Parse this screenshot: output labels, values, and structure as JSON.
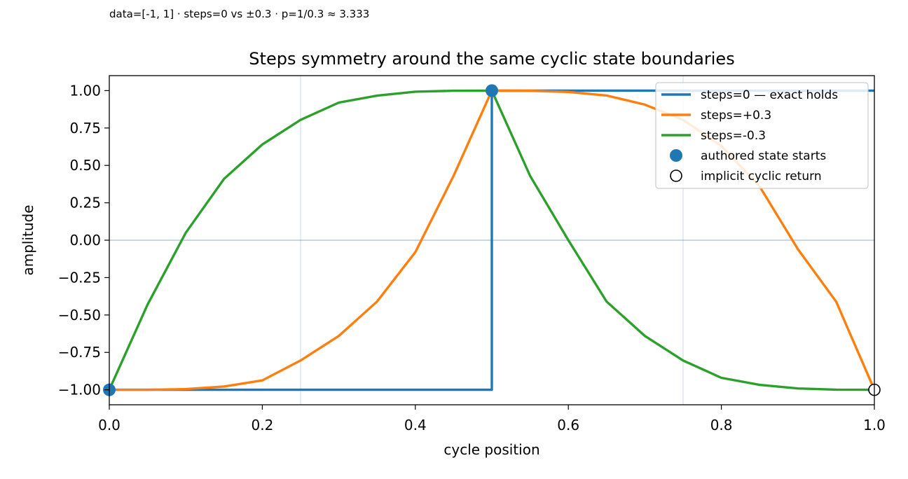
{
  "supertitle": "data=[-1, 1] · steps=0 vs ±0.3 · p=1/0.3 ≈ 3.333",
  "chart_data": {
    "type": "line",
    "title": "Steps symmetry around the same cyclic state boundaries",
    "xlabel": "cycle position",
    "ylabel": "amplitude",
    "xlim": [
      0,
      1
    ],
    "ylim": [
      -1.1,
      1.1
    ],
    "xticks": [
      0.0,
      0.2,
      0.4,
      0.6,
      0.8,
      1.0
    ],
    "xtick_labels": [
      "0.0",
      "0.2",
      "0.4",
      "0.6",
      "0.8",
      "1.0"
    ],
    "yticks": [
      1.0,
      0.75,
      0.5,
      0.25,
      0.0,
      -0.25,
      -0.5,
      -0.75,
      -1.0
    ],
    "ytick_labels": [
      "1.00",
      "0.75",
      "0.50",
      "0.25",
      "0.00",
      "−0.25",
      "−0.50",
      "−0.75",
      "−1.00"
    ],
    "reference_vlines": [
      0.25,
      0.75
    ],
    "reference_hlines": [
      0.0
    ],
    "legend_position": "top-right",
    "series": [
      {
        "name": "steps=0 — exact holds",
        "color": "#1f77b4",
        "x": [
          0.0,
          0.5,
          0.5,
          1.0
        ],
        "y": [
          -1.0,
          -1.0,
          1.0,
          1.0
        ]
      },
      {
        "name": "steps=+0.3",
        "color": "#ff7f0e",
        "x": [
          0.0,
          0.05,
          0.1,
          0.15,
          0.2,
          0.25,
          0.3,
          0.35,
          0.4,
          0.45,
          0.5,
          0.55,
          0.6,
          0.65,
          0.7,
          0.75,
          0.8,
          0.85,
          0.9,
          0.95,
          1.0
        ],
        "y": [
          -1.0,
          -1.0,
          -0.995,
          -0.978,
          -0.937,
          -0.804,
          -0.64,
          -0.41,
          -0.08,
          0.43,
          1.0,
          0.999,
          0.991,
          0.967,
          0.906,
          0.804,
          0.63,
          0.36,
          -0.06,
          -0.41,
          -1.0
        ]
      },
      {
        "name": "steps=-0.3",
        "color": "#2ca02c",
        "x": [
          0.0,
          0.05,
          0.1,
          0.15,
          0.2,
          0.25,
          0.3,
          0.35,
          0.4,
          0.45,
          0.5,
          0.55,
          0.6,
          0.65,
          0.7,
          0.75,
          0.8,
          0.85,
          0.9,
          0.95,
          1.0
        ],
        "y": [
          -1.0,
          -0.43,
          0.05,
          0.41,
          0.64,
          0.804,
          0.92,
          0.966,
          0.993,
          0.999,
          1.0,
          0.43,
          0.0,
          -0.41,
          -0.64,
          -0.804,
          -0.92,
          -0.967,
          -0.991,
          -0.999,
          -1.0
        ]
      }
    ],
    "markers": [
      {
        "name": "authored state starts",
        "style": "filled",
        "color": "#1f77b4",
        "points": [
          [
            0.0,
            -1.0
          ],
          [
            0.5,
            1.0
          ]
        ]
      },
      {
        "name": "implicit cyclic return",
        "style": "open",
        "color": "#000000",
        "points": [
          [
            1.0,
            -1.0
          ]
        ]
      }
    ]
  }
}
